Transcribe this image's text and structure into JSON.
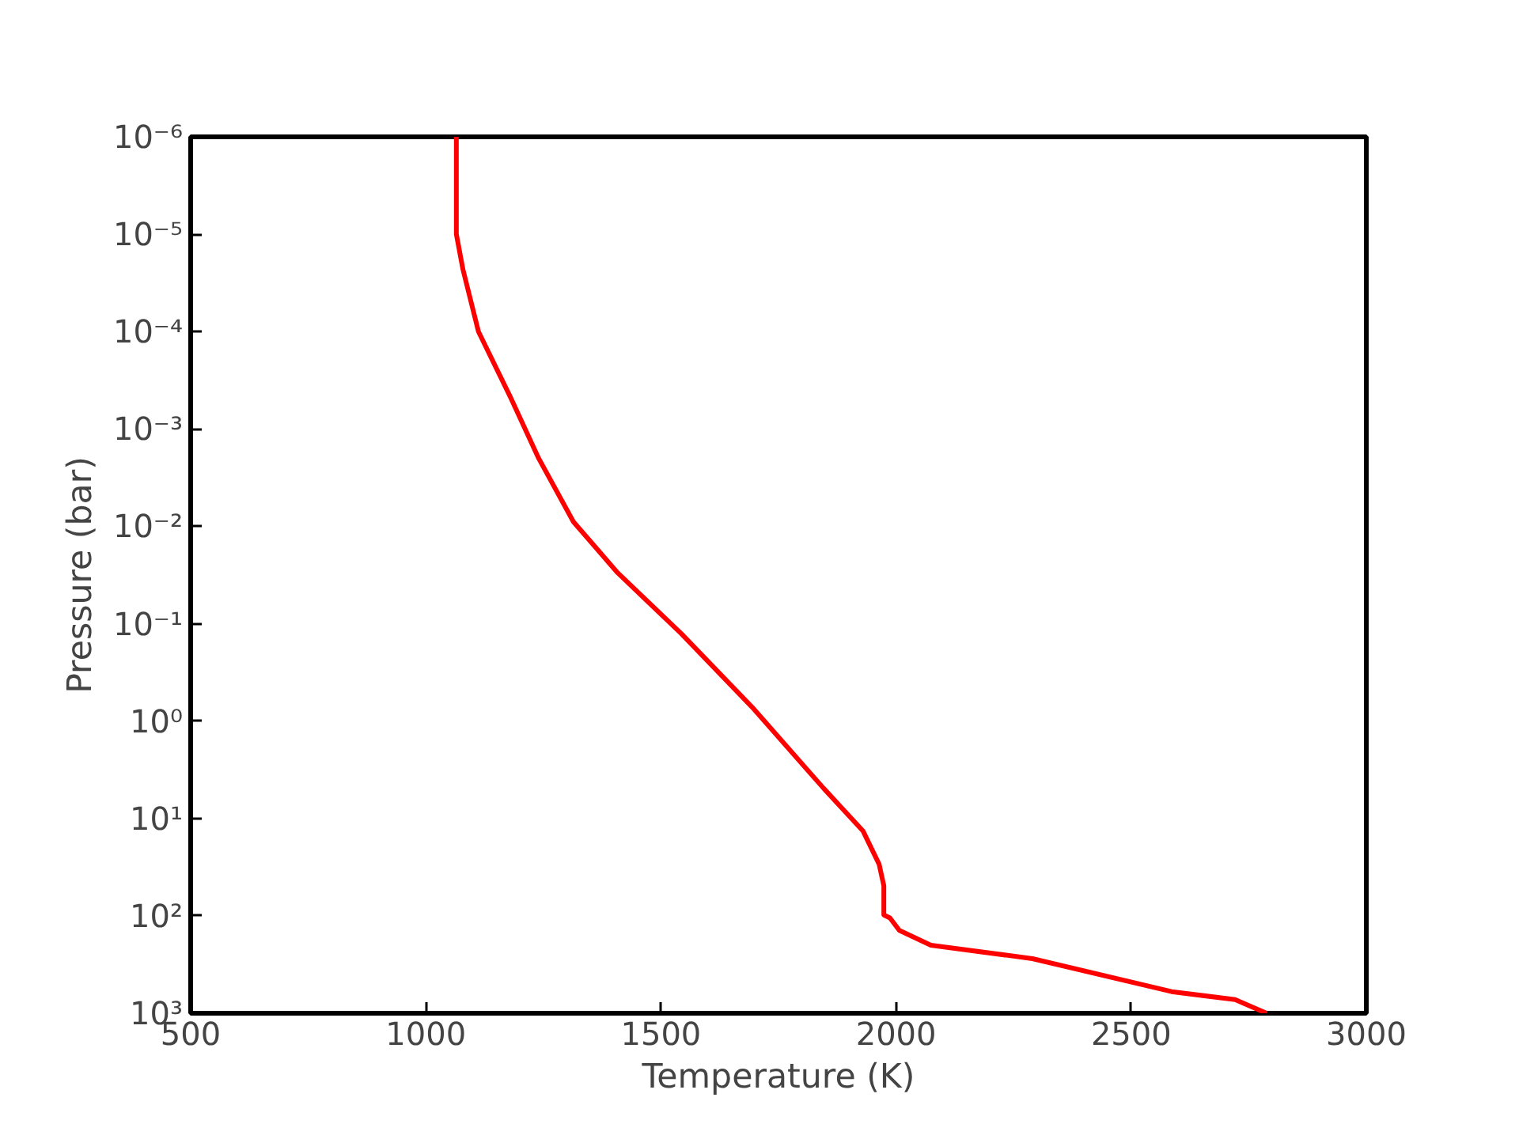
{
  "chart_data": {
    "type": "line",
    "xlabel": "Temperature (K)",
    "ylabel": "Pressure (bar)",
    "log": "y",
    "grid": false,
    "marker": "none",
    "line_style": "solid",
    "xlim": [
      500,
      3000
    ],
    "xticks": [
      500,
      1000,
      1500,
      2000,
      2500,
      3000
    ],
    "ylim": [
      1000,
      1e-06
    ],
    "yticks": [
      {
        "value": 1e-06,
        "label": "10⁻⁶"
      },
      {
        "value": 1e-05,
        "label": "10⁻⁵"
      },
      {
        "value": 0.0001,
        "label": "10⁻⁴"
      },
      {
        "value": 0.001,
        "label": "10⁻³"
      },
      {
        "value": 0.01,
        "label": "10⁻²"
      },
      {
        "value": 0.1,
        "label": "10⁻¹"
      },
      {
        "value": 1,
        "label": "10⁰"
      },
      {
        "value": 10,
        "label": "10¹"
      },
      {
        "value": 100,
        "label": "10²"
      },
      {
        "value": 1000,
        "label": "10³"
      }
    ],
    "series": [
      {
        "color": "#ff0000",
        "x": [
          1065,
          1065,
          1079,
          1112,
          1179,
          1240,
          1314,
          1408,
          1543,
          1694,
          1846,
          1930,
          1964,
          1974,
          1974,
          1987,
          2007,
          2074,
          2290,
          2586,
          2721,
          2788
        ],
        "values": [
          1e-06,
          1e-05,
          2.3e-05,
          0.0001,
          0.00046,
          0.002,
          0.009,
          0.03,
          0.126,
          0.72,
          4.9,
          13.5,
          29.5,
          49,
          98,
          105,
          141,
          200,
          275,
          600,
          725,
          1000
        ]
      }
    ]
  }
}
